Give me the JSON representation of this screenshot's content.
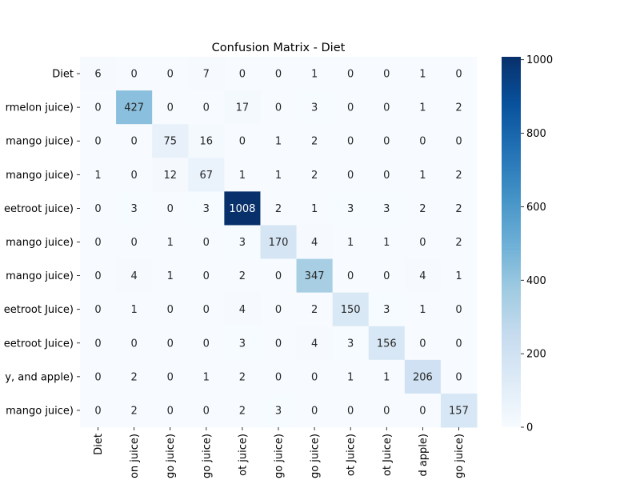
{
  "chart_data": {
    "type": "heatmap",
    "title": "Confusion Matrix - Diet",
    "xlabel": "",
    "ylabel": "",
    "row_labels": [
      "Diet",
      "rmelon juice)",
      "mango juice)",
      "mango juice)",
      "eetroot juice)",
      "mango juice)",
      "mango juice)",
      "eetroot Juice)",
      "eetroot Juice)",
      "y, and apple)",
      "mango juice)"
    ],
    "col_labels": [
      "Diet",
      "on juice)",
      "go juice)",
      "go juice)",
      "ot juice)",
      "go juice)",
      "go juice)",
      "ot Juice)",
      "ot Juice)",
      "d apple)",
      "go juice)"
    ],
    "values": [
      [
        6,
        0,
        0,
        7,
        0,
        0,
        1,
        0,
        0,
        1,
        0
      ],
      [
        0,
        427,
        0,
        0,
        17,
        0,
        3,
        0,
        0,
        1,
        2
      ],
      [
        0,
        0,
        75,
        16,
        0,
        1,
        2,
        0,
        0,
        0,
        0
      ],
      [
        1,
        0,
        12,
        67,
        1,
        1,
        2,
        0,
        0,
        1,
        2
      ],
      [
        0,
        3,
        0,
        3,
        1008,
        2,
        1,
        3,
        3,
        2,
        2
      ],
      [
        0,
        0,
        1,
        0,
        3,
        170,
        4,
        1,
        1,
        0,
        2
      ],
      [
        0,
        4,
        1,
        0,
        2,
        0,
        347,
        0,
        0,
        4,
        1
      ],
      [
        0,
        1,
        0,
        0,
        4,
        0,
        2,
        150,
        3,
        1,
        0
      ],
      [
        0,
        0,
        0,
        0,
        3,
        0,
        4,
        3,
        156,
        0,
        0
      ],
      [
        0,
        2,
        0,
        1,
        2,
        0,
        0,
        1,
        1,
        206,
        0
      ],
      [
        0,
        2,
        0,
        0,
        2,
        3,
        0,
        0,
        0,
        0,
        157
      ]
    ],
    "colorbar": {
      "min": 0,
      "max": 1008,
      "ticks": [
        0,
        200,
        400,
        600,
        800,
        1000
      ],
      "colormap": "Blues"
    },
    "grid": false,
    "legend": "colorbar-right"
  }
}
